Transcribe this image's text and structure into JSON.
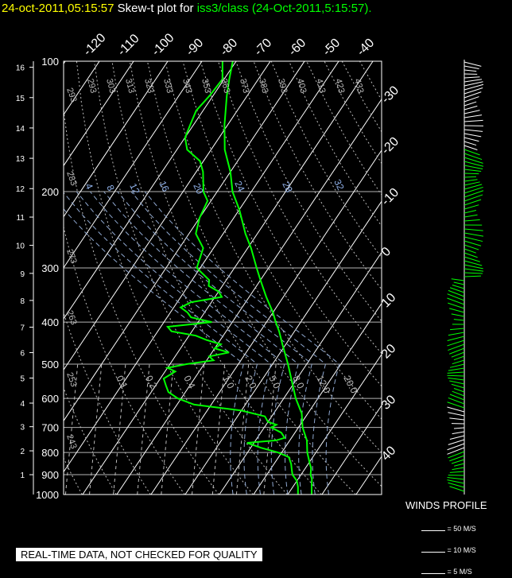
{
  "header": {
    "datetime": "24-oct-2011,05:15:57",
    "title_mid": "Skew-t plot for",
    "title_tail": "iss3/class (24-Oct-2011,5:15:57).",
    "datetime_color": "#ffff00",
    "title_color": "#ffffff",
    "tail_color": "#00ff00"
  },
  "disclaimer": "REAL-TIME DATA, NOT CHECKED FOR QUALITY",
  "winds_profile": {
    "label": "WINDS PROFILE",
    "legend": [
      "= 50 M/S",
      "= 10 M/S",
      "= 5 M/S"
    ]
  },
  "chart_data": {
    "type": "line",
    "pressure_ticks": [
      100,
      200,
      300,
      400,
      500,
      600,
      700,
      800,
      900,
      1000
    ],
    "height_ticks_km": [
      1,
      2,
      3,
      4,
      5,
      6,
      7,
      8,
      9,
      10,
      11,
      12,
      13,
      14,
      15,
      16
    ],
    "height_km_at_pressure": {
      "1000": 0.11,
      "900": 1.0,
      "800": 1.93,
      "700": 2.97,
      "600": 4.2,
      "500": 5.55,
      "400": 7.2,
      "300": 9.2,
      "200": 11.9,
      "100": 16.2
    },
    "temperature_top_ticks": [
      -120,
      -110,
      -100,
      -90,
      -80,
      -70,
      -60,
      -50,
      -40
    ],
    "temperature_right_ticks": [
      -30,
      -20,
      -10,
      0,
      10,
      20,
      30,
      40
    ],
    "temperature_right_ticks_display": [
      "-30",
      "-20",
      "-10",
      "0",
      "10",
      "20",
      "30",
      "40"
    ],
    "dry_adiabat_labels": [
      "293",
      "303",
      "313",
      "323",
      "333",
      "343",
      "353",
      "363",
      "373",
      "383",
      "393",
      "403",
      "413",
      "423",
      "433"
    ],
    "dry_adiabat_left_labels": [
      "293",
      "283",
      "273",
      "263",
      "253",
      "243"
    ],
    "moist_adiabat_labels": [
      "4",
      "8",
      "12",
      "16",
      "20",
      "24",
      "28",
      "32"
    ],
    "mixing_ratio_labels": [
      "0.1",
      "0.2",
      "0.4",
      "1.0",
      "2.0",
      "5.0",
      "8.0",
      "12.0",
      "20.0"
    ],
    "series": [
      {
        "name": "",
        "color": "#00ff00",
        "points": [
          [
            1000,
            27
          ],
          [
            960,
            25.5
          ],
          [
            920,
            24
          ],
          [
            900,
            22.8
          ],
          [
            870,
            21.7
          ],
          [
            850,
            20.5
          ],
          [
            800,
            17.5
          ],
          [
            750,
            15
          ],
          [
            700,
            11.2
          ],
          [
            650,
            8.2
          ],
          [
            600,
            3.5
          ],
          [
            550,
            -0.8
          ],
          [
            500,
            -5.5
          ],
          [
            450,
            -11
          ],
          [
            420,
            -14.5
          ],
          [
            400,
            -17.3
          ],
          [
            380,
            -20
          ],
          [
            350,
            -25
          ],
          [
            320,
            -30
          ],
          [
            300,
            -33.5
          ],
          [
            270,
            -39
          ],
          [
            250,
            -43.5
          ],
          [
            220,
            -50
          ],
          [
            200,
            -55.5
          ],
          [
            180,
            -60
          ],
          [
            160,
            -66
          ],
          [
            140,
            -71
          ],
          [
            120,
            -76
          ],
          [
            110,
            -78.5
          ],
          [
            100,
            -81
          ]
        ]
      },
      {
        "name": "",
        "color": "#00ff00",
        "points": [
          [
            1000,
            23
          ],
          [
            960,
            21.5
          ],
          [
            930,
            20
          ],
          [
            900,
            17.5
          ],
          [
            880,
            16.5
          ],
          [
            850,
            15
          ],
          [
            820,
            13
          ],
          [
            800,
            9
          ],
          [
            780,
            3
          ],
          [
            760,
            -2
          ],
          [
            750,
            6
          ],
          [
            740,
            8
          ],
          [
            720,
            6
          ],
          [
            700,
            2
          ],
          [
            690,
            3
          ],
          [
            680,
            0
          ],
          [
            660,
            -2
          ],
          [
            640,
            -10
          ],
          [
            620,
            -25
          ],
          [
            600,
            -31
          ],
          [
            580,
            -35
          ],
          [
            560,
            -37
          ],
          [
            540,
            -39
          ],
          [
            520,
            -37
          ],
          [
            510,
            -40
          ],
          [
            500,
            -35
          ],
          [
            490,
            -28
          ],
          [
            480,
            -30
          ],
          [
            470,
            -25
          ],
          [
            460,
            -30
          ],
          [
            450,
            -29
          ],
          [
            440,
            -34
          ],
          [
            430,
            -38
          ],
          [
            420,
            -46
          ],
          [
            410,
            -48
          ],
          [
            400,
            -36
          ],
          [
            390,
            -43
          ],
          [
            380,
            -45
          ],
          [
            370,
            -48
          ],
          [
            360,
            -46
          ],
          [
            350,
            -38
          ],
          [
            340,
            -40
          ],
          [
            330,
            -44
          ],
          [
            320,
            -45
          ],
          [
            300,
            -51
          ],
          [
            270,
            -53
          ],
          [
            250,
            -58
          ],
          [
            230,
            -60
          ],
          [
            210,
            -61
          ],
          [
            200,
            -64
          ],
          [
            180,
            -68
          ],
          [
            170,
            -71
          ],
          [
            160,
            -77
          ],
          [
            150,
            -80
          ],
          [
            140,
            -81
          ],
          [
            130,
            -82
          ],
          [
            120,
            -81
          ],
          [
            110,
            -80.5
          ],
          [
            100,
            -84
          ]
        ]
      }
    ],
    "xlabel": "",
    "ylabel": "",
    "ylim": [
      1000,
      100
    ],
    "grid": true
  }
}
